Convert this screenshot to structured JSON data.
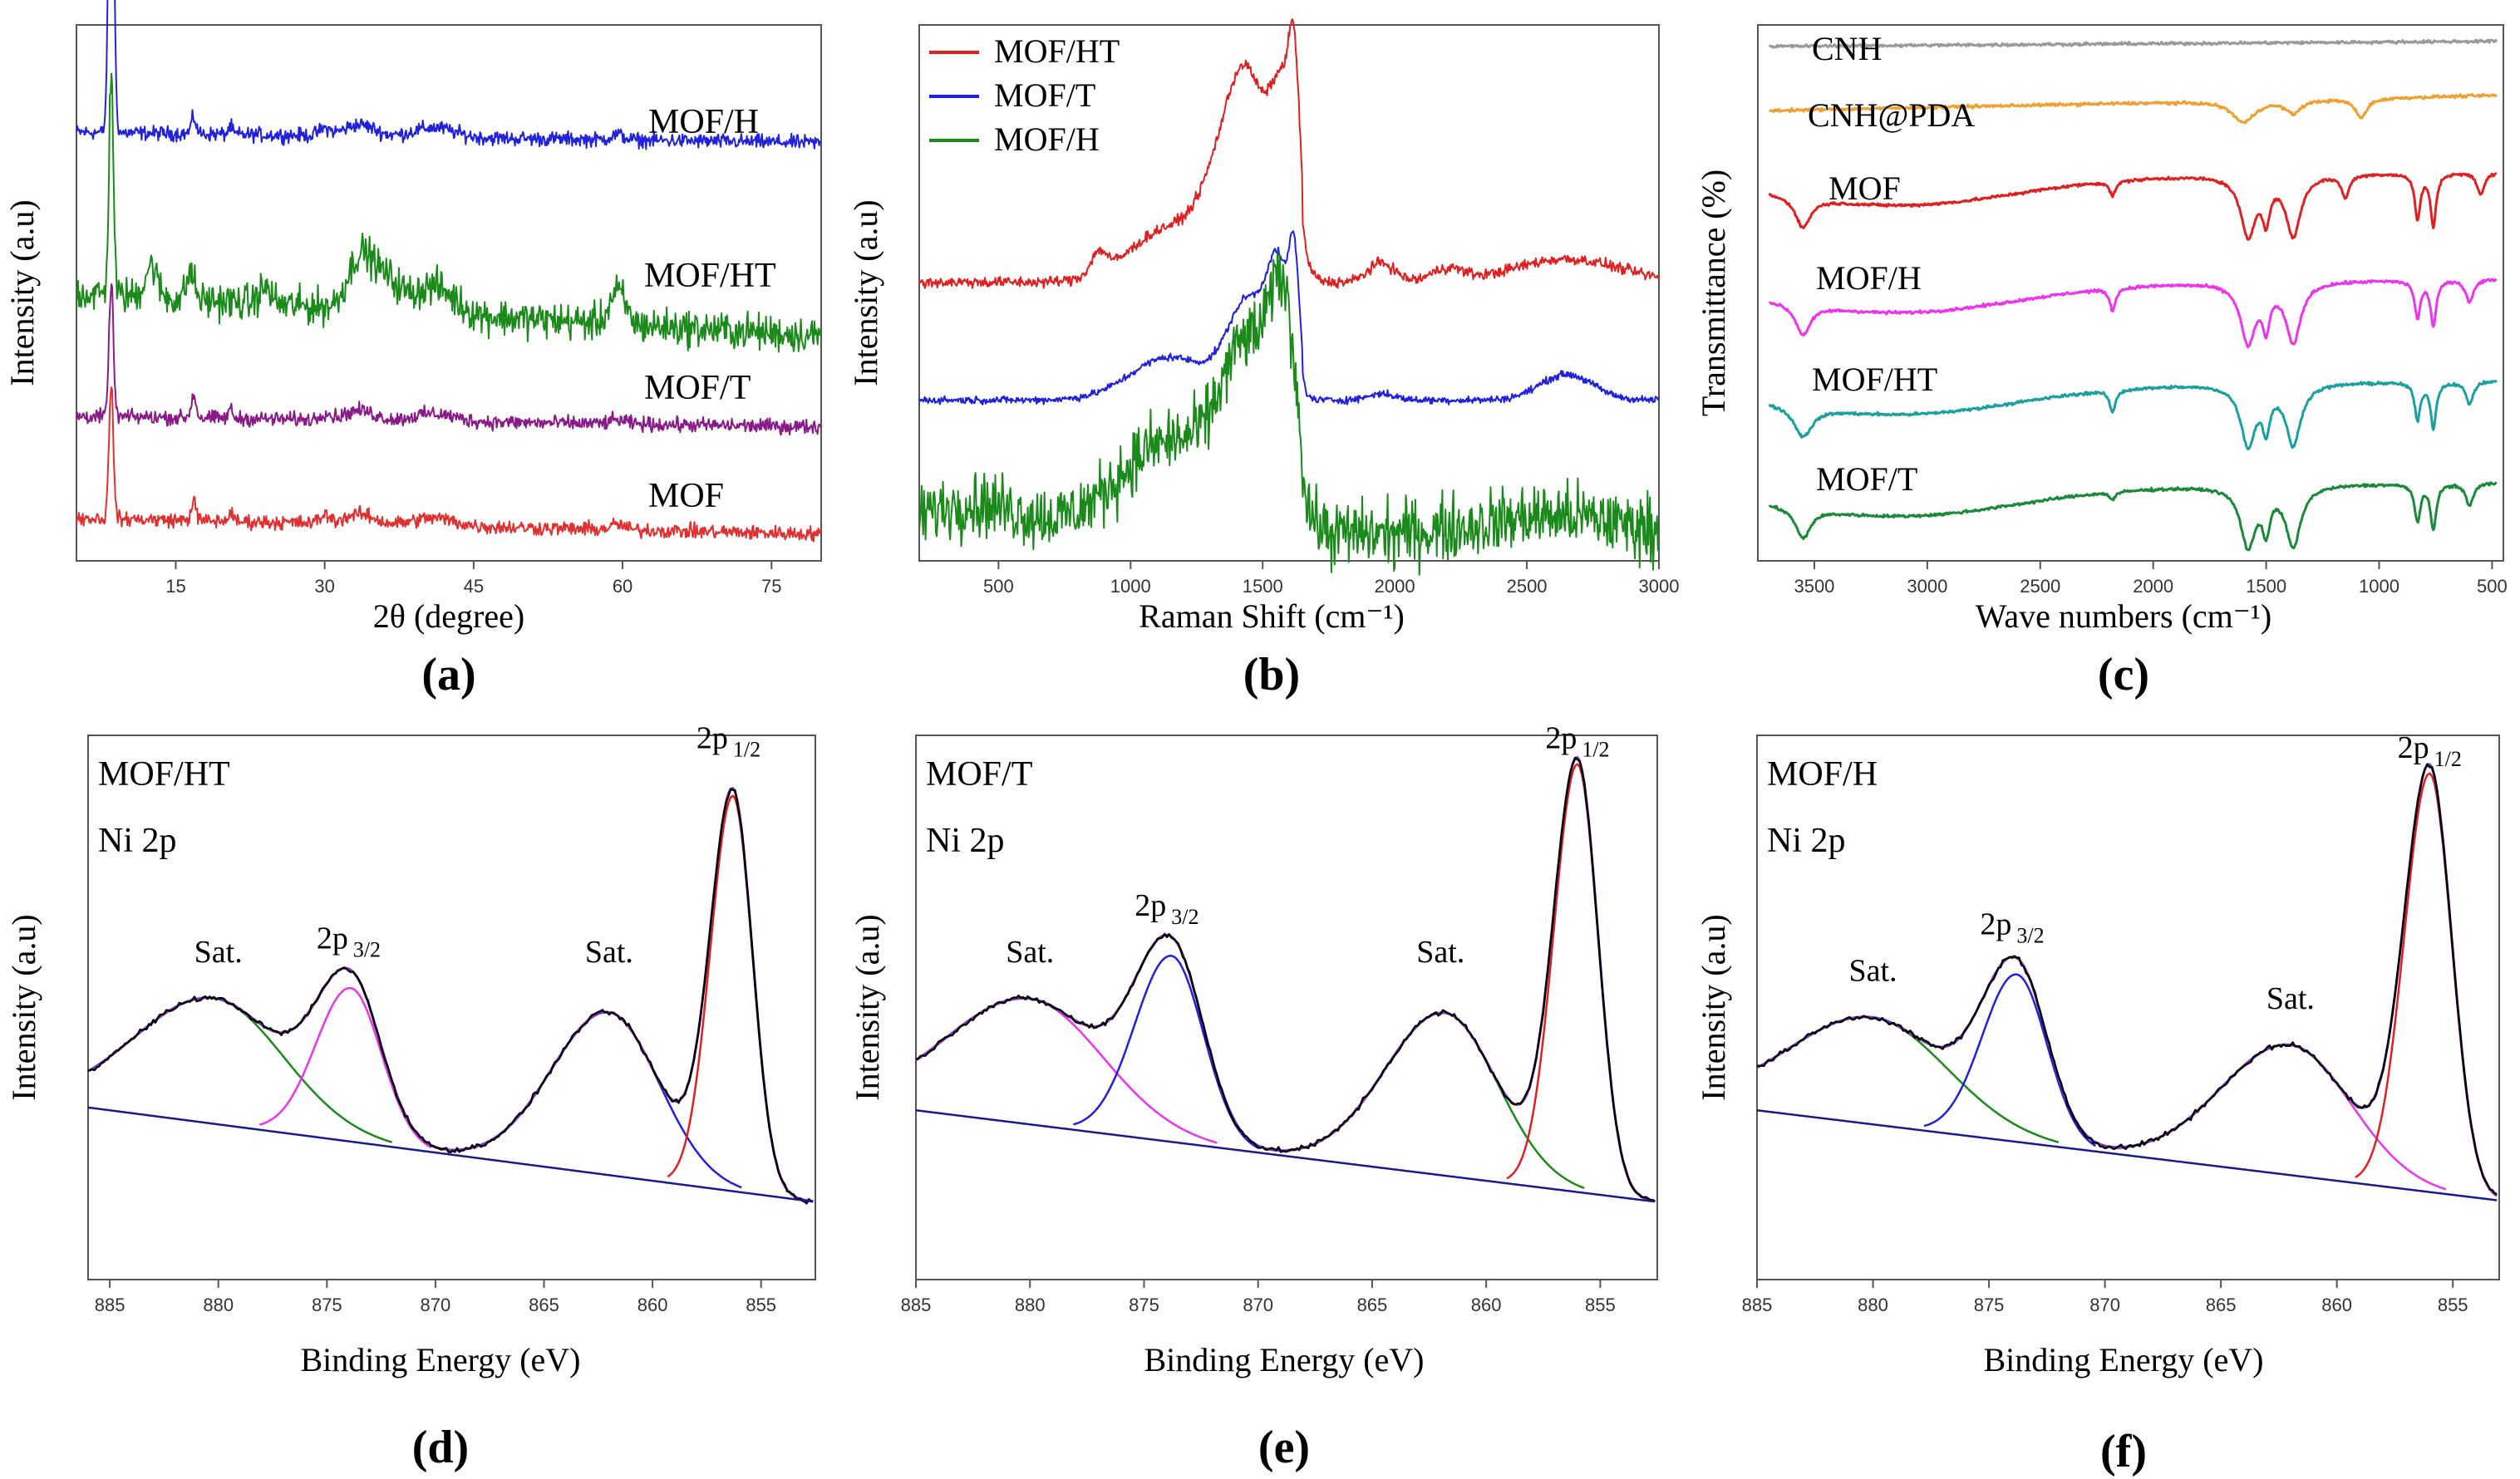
{
  "chart_data": [
    {
      "id": "a",
      "type": "line",
      "panel_label": "(a)",
      "xlabel": "2θ (degree)",
      "ylabel": "Intensity (a.u)",
      "xlim": [
        5,
        80
      ],
      "x_ticks": [
        15,
        30,
        45,
        60,
        75
      ],
      "series": [
        {
          "name": "MOF/H",
          "color": "#2222dd",
          "offset": 0.8,
          "scale": 0.12,
          "sharp": 0.72,
          "peaks": [
            [
              8.5,
              1.0,
              0.25
            ],
            [
              16.8,
              0.25,
              0.25
            ],
            [
              20.5,
              0.12,
              0.2
            ],
            [
              30,
              0.1,
              0.6
            ],
            [
              33.5,
              0.18,
              1.5
            ],
            [
              41,
              0.15,
              2
            ],
            [
              59.5,
              0.08,
              0.7
            ]
          ],
          "noise": 0.02,
          "slope": -0.02
        },
        {
          "name": "MOF/HT",
          "color": "#1a8a1a",
          "offset": 0.5,
          "scale": 0.2,
          "sharp": 0.42,
          "peaks": [
            [
              8.5,
              1.0,
              0.22
            ],
            [
              12.5,
              0.3,
              0.6
            ],
            [
              16.5,
              0.25,
              0.4
            ],
            [
              24,
              0.15,
              0.6
            ],
            [
              33.5,
              0.45,
              1.2
            ],
            [
              36,
              0.3,
              1.5
            ],
            [
              41,
              0.25,
              2
            ],
            [
              59.5,
              0.3,
              0.8
            ]
          ],
          "noise": 0.05,
          "slope": -0.08
        },
        {
          "name": "MOF/T",
          "color": "#8a1a8a",
          "offset": 0.27,
          "scale": 0.12,
          "sharp": 0.25,
          "peaks": [
            [
              8.5,
              1.0,
              0.22
            ],
            [
              16.8,
              0.35,
              0.25
            ],
            [
              20.5,
              0.15,
              0.2
            ],
            [
              30,
              0.1,
              0.5
            ],
            [
              33.5,
              0.15,
              1.5
            ],
            [
              41,
              0.12,
              2
            ],
            [
              59.5,
              0.06,
              0.8
            ]
          ],
          "noise": 0.02,
          "slope": -0.02
        },
        {
          "name": "MOF",
          "color": "#e03030",
          "offset": 0.08,
          "scale": 0.12,
          "sharp": 0.25,
          "peaks": [
            [
              8.5,
              1.0,
              0.22
            ],
            [
              16.8,
              0.3,
              0.25
            ],
            [
              20.5,
              0.15,
              0.2
            ],
            [
              30,
              0.12,
              0.5
            ],
            [
              33.5,
              0.15,
              1.5
            ],
            [
              41,
              0.12,
              2
            ],
            [
              59.5,
              0.08,
              0.7
            ]
          ],
          "noise": 0.02,
          "slope": -0.03
        }
      ]
    },
    {
      "id": "b",
      "type": "line",
      "panel_label": "(b)",
      "xlabel": "Raman Shift (cm⁻¹)",
      "ylabel": "Intensity (a.u)",
      "xlim": [
        200,
        3000
      ],
      "x_ticks": [
        500,
        1000,
        1500,
        2000,
        2500,
        3000
      ],
      "legend": [
        "MOF/HT",
        "MOF/T",
        "MOF/H"
      ],
      "legend_position": "top-left",
      "series": [
        {
          "name": "MOF/HT",
          "color": "#e02020",
          "offset": 0.52,
          "scale": 0.4,
          "peaks": [
            [
              880,
              0.1,
              30
            ],
            [
              1150,
              0.25,
              150
            ],
            [
              1450,
              0.75,
              70
            ],
            [
              1580,
              0.8,
              50
            ],
            [
              1620,
              0.55,
              20
            ],
            [
              1350,
              0.4,
              80
            ],
            [
              1950,
              0.15,
              50
            ],
            [
              2200,
              0.1,
              60
            ],
            [
              2650,
              0.18,
              200
            ]
          ],
          "noise": 0.015
        },
        {
          "name": "MOF/T",
          "color": "#2020dd",
          "offset": 0.3,
          "scale": 0.4,
          "peaks": [
            [
              1150,
              0.2,
              150
            ],
            [
              1450,
              0.45,
              80
            ],
            [
              1560,
              0.5,
              40
            ],
            [
              1620,
              0.55,
              20
            ],
            [
              2650,
              0.2,
              100
            ],
            [
              1950,
              0.05,
              50
            ]
          ],
          "noise": 0.01
        },
        {
          "name": "MOF/H",
          "color": "#1a8a1a",
          "offset": 0.05,
          "scale": 0.38,
          "peaks": [
            [
              1150,
              0.45,
              200
            ],
            [
              1450,
              0.8,
              100
            ],
            [
              1580,
              0.85,
              50
            ],
            [
              400,
              0.15,
              200
            ],
            [
              2600,
              0.15,
              250
            ]
          ],
          "noise": 0.09
        }
      ]
    },
    {
      "id": "c",
      "type": "line",
      "panel_label": "(c)",
      "xlabel": "Wave numbers (cm⁻¹)",
      "ylabel": "Transmittance (%)",
      "xlim": [
        3750,
        450
      ],
      "x_ticks": [
        3500,
        3000,
        2500,
        2000,
        1500,
        1000,
        500
      ],
      "series": [
        {
          "name": "CNH",
          "color": "#9a9a9a",
          "offset": 0.94,
          "scale": 0.04,
          "dips": [],
          "trend": 0.4
        },
        {
          "name": "CNH@PDA",
          "color": "#f0a030",
          "offset": 0.8,
          "scale": 0.08,
          "dips": [
            [
              1600,
              0.5,
              60
            ],
            [
              1380,
              0.3,
              40
            ],
            [
              1080,
              0.45,
              30
            ]
          ],
          "trend": 0.6
        },
        {
          "name": "MOF",
          "color": "#e02020",
          "offset": 0.64,
          "scale": 0.14,
          "dips": [
            [
              3550,
              0.4,
              40
            ],
            [
              2180,
              0.2,
              15
            ],
            [
              1580,
              0.8,
              40
            ],
            [
              1380,
              0.8,
              40
            ],
            [
              1500,
              0.5,
              20
            ],
            [
              1150,
              0.3,
              20
            ],
            [
              830,
              0.6,
              15
            ],
            [
              760,
              0.7,
              15
            ],
            [
              550,
              0.3,
              20
            ]
          ],
          "trend": 0.2
        },
        {
          "name": "MOF/H",
          "color": "#ee33ee",
          "offset": 0.44,
          "scale": 0.14,
          "dips": [
            [
              3550,
              0.4,
              40
            ],
            [
              2180,
              0.3,
              15
            ],
            [
              1580,
              0.8,
              40
            ],
            [
              1380,
              0.8,
              40
            ],
            [
              1500,
              0.5,
              20
            ],
            [
              830,
              0.5,
              15
            ],
            [
              760,
              0.6,
              15
            ],
            [
              600,
              0.3,
              20
            ]
          ],
          "trend": 0.2
        },
        {
          "name": "MOF/HT",
          "color": "#1aa0a0",
          "offset": 0.25,
          "scale": 0.14,
          "dips": [
            [
              3550,
              0.4,
              50
            ],
            [
              2180,
              0.3,
              15
            ],
            [
              1580,
              0.8,
              40
            ],
            [
              1380,
              0.8,
              40
            ],
            [
              1500,
              0.5,
              20
            ],
            [
              830,
              0.5,
              15
            ],
            [
              760,
              0.6,
              15
            ],
            [
              600,
              0.3,
              20
            ]
          ],
          "trend": 0.2
        },
        {
          "name": "MOF/T",
          "color": "#1a8a3a",
          "offset": 0.06,
          "scale": 0.14,
          "dips": [
            [
              3550,
              0.4,
              40
            ],
            [
              2180,
              0.1,
              15
            ],
            [
              1580,
              0.8,
              40
            ],
            [
              1380,
              0.8,
              40
            ],
            [
              1500,
              0.5,
              20
            ],
            [
              830,
              0.5,
              15
            ],
            [
              760,
              0.6,
              15
            ],
            [
              600,
              0.3,
              20
            ]
          ],
          "trend": 0.2
        }
      ]
    },
    {
      "id": "d",
      "type": "line",
      "panel_label": "(d)",
      "xlabel": "Binding Energy (eV)",
      "ylabel": "Intensity (a.u)",
      "xlim": [
        886,
        852.5
      ],
      "x_ticks": [
        885,
        880,
        875,
        870,
        865,
        860,
        855
      ],
      "corner_labels": [
        "MOF/HT",
        "Ni 2p"
      ],
      "peak_labels": [
        {
          "text": "Sat.",
          "x": 880,
          "y": 0.6
        },
        {
          "text": "2p",
          "sub": "3/2",
          "x": 874,
          "y": 0.63
        },
        {
          "text": "Sat.",
          "x": 862,
          "y": 0.6
        },
        {
          "text": "2p",
          "sub": "1/2",
          "x": 856.5,
          "y": 1.06
        }
      ],
      "fits": [
        {
          "role": "background",
          "color": "#1a1a8a"
        },
        {
          "role": "sat1",
          "color": "#1a8a1a",
          "c": 880.2,
          "a": 0.27,
          "w": 3.2
        },
        {
          "role": "p32",
          "color": "#ee33ee",
          "c": 873.9,
          "a": 0.33,
          "w": 1.4
        },
        {
          "role": "sat2",
          "color": "#2020dd",
          "c": 862.0,
          "a": 0.35,
          "w": 2.3
        },
        {
          "role": "p12",
          "color": "#e02020",
          "c": 856.3,
          "a": 0.85,
          "w": 0.9
        },
        {
          "role": "envelope",
          "color": "#8a33dd"
        },
        {
          "role": "data",
          "color": "#000000"
        }
      ]
    },
    {
      "id": "e",
      "type": "line",
      "panel_label": "(e)",
      "xlabel": "Binding Energy (eV)",
      "ylabel": "Intensity (a.u)",
      "xlim": [
        885,
        852.5
      ],
      "x_ticks": [
        885,
        880,
        875,
        870,
        865,
        860,
        855
      ],
      "corner_labels": [
        "MOF/T",
        "Ni 2p"
      ],
      "peak_labels": [
        {
          "text": "Sat.",
          "x": 880,
          "y": 0.6
        },
        {
          "text": "2p",
          "sub": "3/2",
          "x": 874,
          "y": 0.7
        },
        {
          "text": "Sat.",
          "x": 862,
          "y": 0.6
        },
        {
          "text": "2p",
          "sub": "1/2",
          "x": 856,
          "y": 1.06
        }
      ],
      "fits": [
        {
          "role": "background",
          "color": "#1a1a8a"
        },
        {
          "role": "sat1",
          "color": "#ee33ee",
          "c": 880.0,
          "a": 0.27,
          "w": 3.2
        },
        {
          "role": "p32",
          "color": "#2020dd",
          "c": 873.8,
          "a": 0.4,
          "w": 1.4
        },
        {
          "role": "sat2",
          "color": "#1a8a1a",
          "c": 861.8,
          "a": 0.35,
          "w": 2.3
        },
        {
          "role": "p12",
          "color": "#e02020",
          "c": 856.0,
          "a": 0.92,
          "w": 0.9
        },
        {
          "role": "envelope",
          "color": "#8a33dd"
        },
        {
          "role": "data",
          "color": "#000000"
        }
      ]
    },
    {
      "id": "f",
      "type": "line",
      "panel_label": "(f)",
      "xlabel": "Binding Energy (eV)",
      "ylabel": "Intensity (a.u)",
      "xlim": [
        885,
        853
      ],
      "x_ticks": [
        885,
        880,
        875,
        870,
        865,
        860,
        855
      ],
      "corner_labels": [
        "MOF/H",
        "Ni 2p"
      ],
      "peak_labels": [
        {
          "text": "Sat.",
          "x": 880,
          "y": 0.56
        },
        {
          "text": "2p",
          "sub": "3/2",
          "x": 874,
          "y": 0.66
        },
        {
          "text": "Sat.",
          "x": 862,
          "y": 0.5
        },
        {
          "text": "2p",
          "sub": "1/2",
          "x": 856,
          "y": 1.04
        }
      ],
      "fits": [
        {
          "role": "background",
          "color": "#1a1a8a"
        },
        {
          "role": "sat1",
          "color": "#1a8a1a",
          "c": 880.0,
          "a": 0.23,
          "w": 3.2
        },
        {
          "role": "p32",
          "color": "#2020dd",
          "c": 873.8,
          "a": 0.36,
          "w": 1.3
        },
        {
          "role": "sat2",
          "color": "#ee33ee",
          "c": 862.0,
          "a": 0.28,
          "w": 2.6
        },
        {
          "role": "p12",
          "color": "#e02020",
          "c": 856.0,
          "a": 0.9,
          "w": 0.95
        },
        {
          "role": "envelope",
          "color": "#8a33dd"
        },
        {
          "role": "data",
          "color": "#000000"
        }
      ]
    }
  ]
}
